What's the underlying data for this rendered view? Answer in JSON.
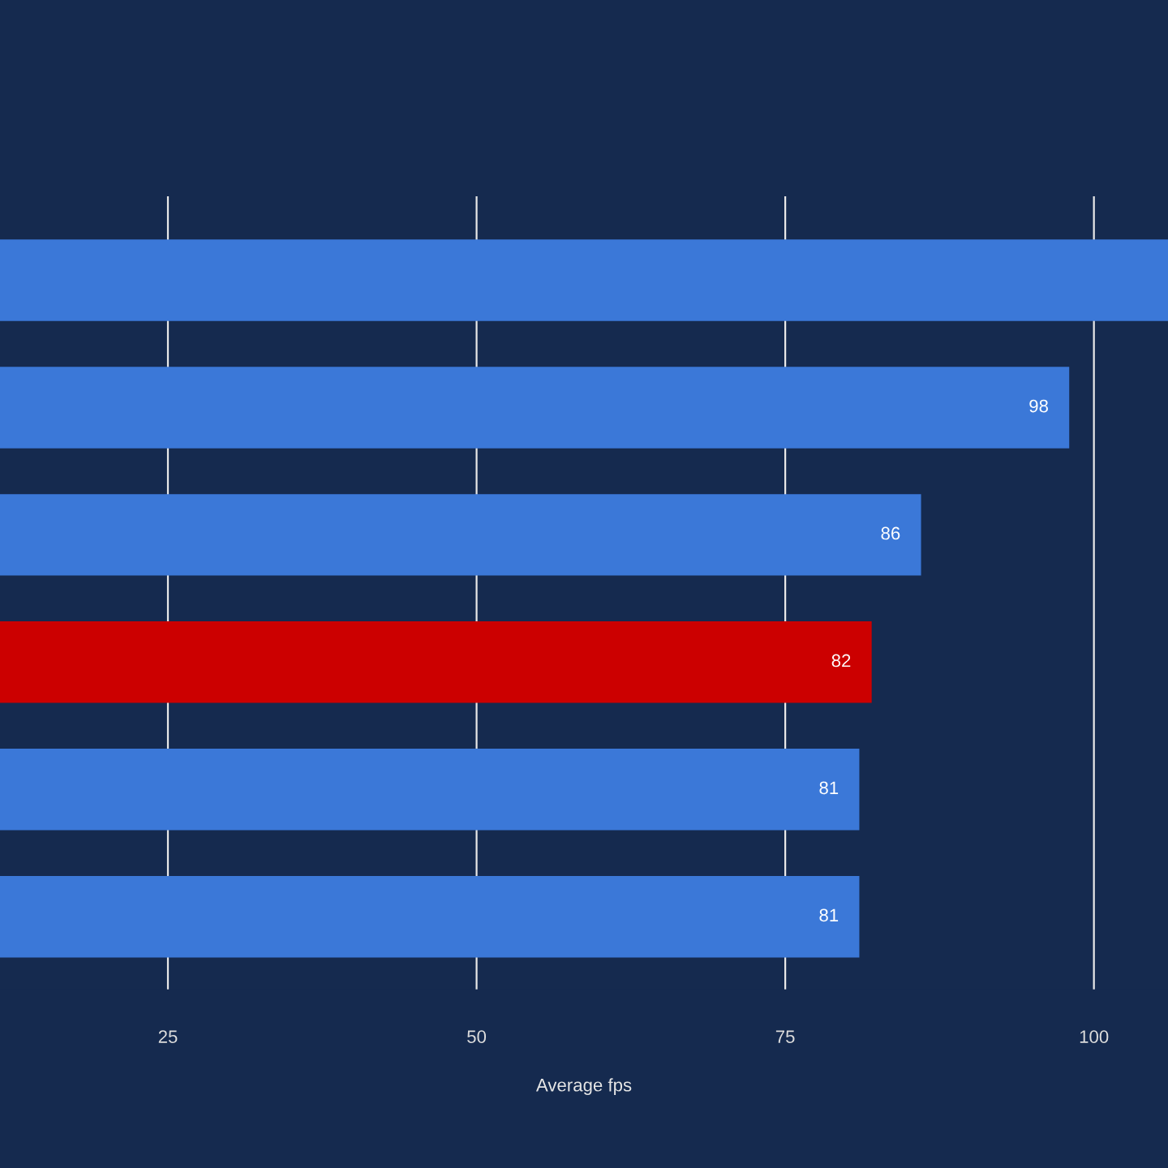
{
  "chart_data": {
    "type": "bar",
    "orientation": "horizontal",
    "xlabel": "Average fps",
    "categories": [
      null,
      null,
      null,
      null,
      null,
      null
    ],
    "values": [
      106,
      98,
      86,
      82,
      81,
      81
    ],
    "colors": [
      "#3b78d8",
      "#3b78d8",
      "#3b78d8",
      "#cc0000",
      "#3b78d8",
      "#3b78d8"
    ],
    "value_labels": [
      null,
      "98",
      "86",
      "82",
      "81",
      "81"
    ],
    "xlim": [
      11.4,
      106
    ],
    "xticks": [
      25,
      50,
      75,
      100
    ],
    "grid": "x",
    "tick_labels": "x"
  }
}
